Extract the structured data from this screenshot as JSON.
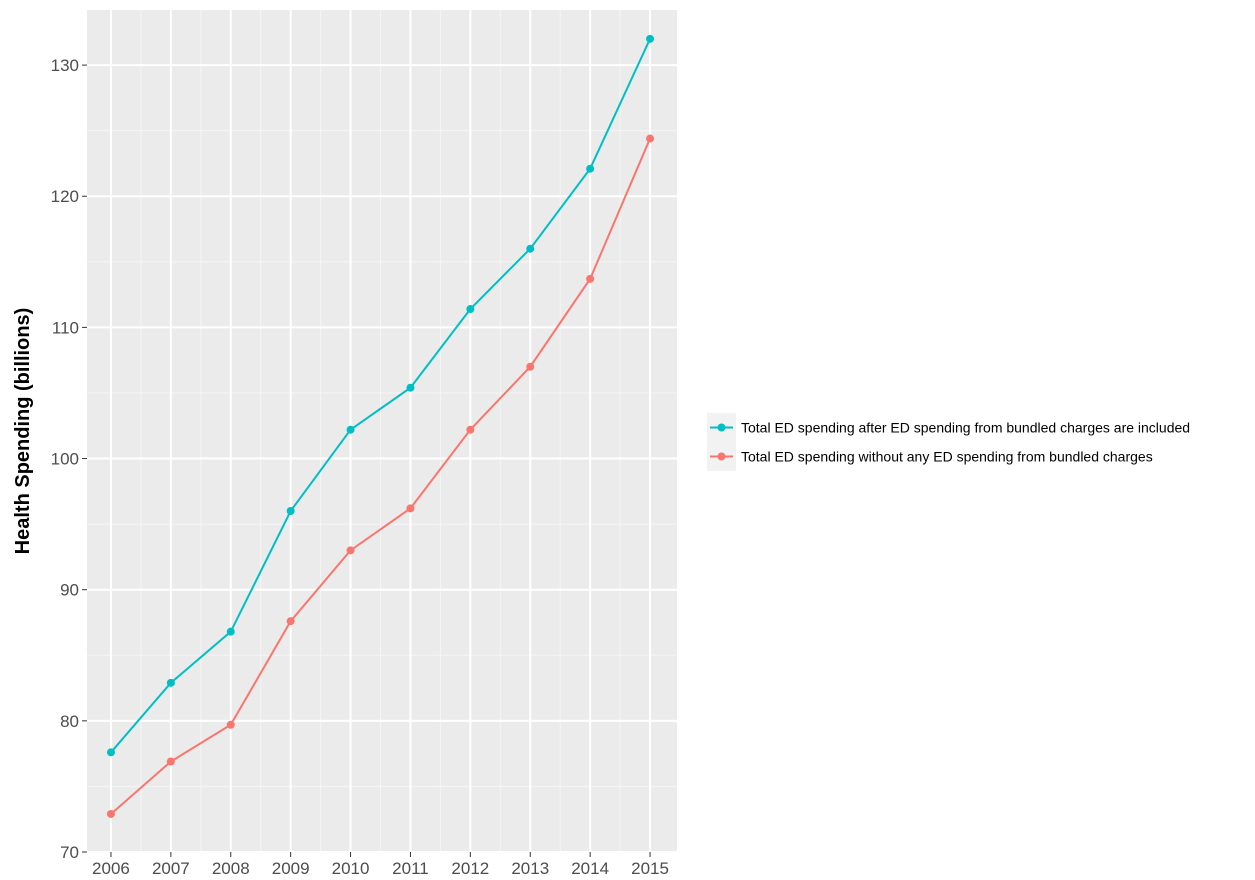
{
  "chart_data": {
    "type": "line",
    "title": "",
    "xlabel": "",
    "ylabel": "Health Spending (billions)",
    "x": [
      2006,
      2007,
      2008,
      2009,
      2010,
      2011,
      2012,
      2013,
      2014,
      2015
    ],
    "x_ticks": [
      "2006",
      "2007",
      "2008",
      "2009",
      "2010",
      "2011",
      "2012",
      "2013",
      "2014",
      "2015"
    ],
    "y_ticks": [
      "70",
      "80",
      "90",
      "100",
      "110",
      "120",
      "130"
    ],
    "y_tick_values": [
      70,
      80,
      90,
      100,
      110,
      120,
      130
    ],
    "xlim": [
      2005.6,
      2015.45
    ],
    "ylim": [
      70,
      134.2
    ],
    "grid": true,
    "legend_position": "right",
    "series": [
      {
        "name": "Total ED spending after ED spending from bundled charges are included",
        "color": "#00BFC4",
        "values": [
          77.6,
          82.9,
          86.8,
          96.0,
          102.2,
          105.4,
          111.4,
          116.0,
          122.1,
          132.0
        ]
      },
      {
        "name": "Total ED spending without any ED spending from bundled charges",
        "color": "#F8766D",
        "values": [
          72.9,
          76.9,
          79.7,
          87.6,
          93.0,
          96.2,
          102.2,
          107.0,
          113.7,
          124.4
        ]
      }
    ]
  }
}
